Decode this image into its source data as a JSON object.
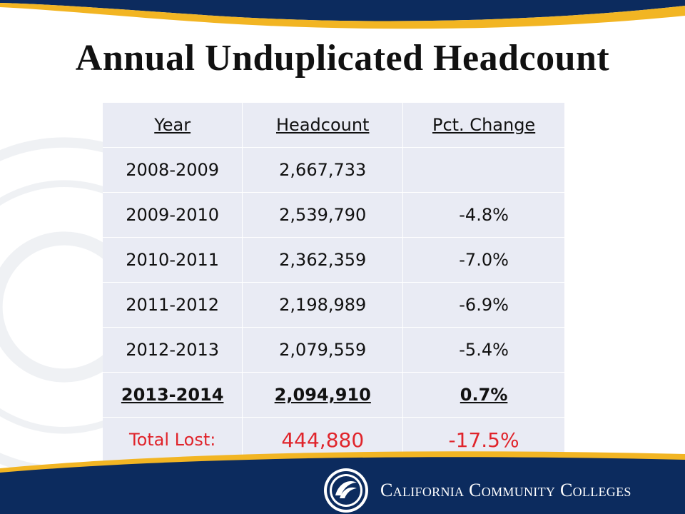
{
  "title": "Annual Unduplicated Headcount",
  "table": {
    "headers": [
      "Year",
      "Headcount",
      "Pct. Change"
    ],
    "rows": [
      {
        "year": "2008-2009",
        "headcount": "2,667,733",
        "change": ""
      },
      {
        "year": "2009-2010",
        "headcount": "2,539,790",
        "change": "-4.8%"
      },
      {
        "year": "2010-2011",
        "headcount": "2,362,359",
        "change": "-7.0%"
      },
      {
        "year": "2011-2012",
        "headcount": "2,198,989",
        "change": "-6.9%"
      },
      {
        "year": "2012-2013",
        "headcount": "2,079,559",
        "change": "-5.4%"
      },
      {
        "year": "2013-2014",
        "headcount": "2,094,910",
        "change": "0.7%"
      }
    ],
    "total": {
      "label": "Total Lost:",
      "headcount": "444,880",
      "change": "-17.5%"
    }
  },
  "footer": {
    "brand": "California Community Colleges"
  },
  "colors": {
    "navy": "#0c2b5e",
    "gold": "#f2b523",
    "total_red": "#e0242b",
    "table_bg": "#e9ebf4"
  }
}
